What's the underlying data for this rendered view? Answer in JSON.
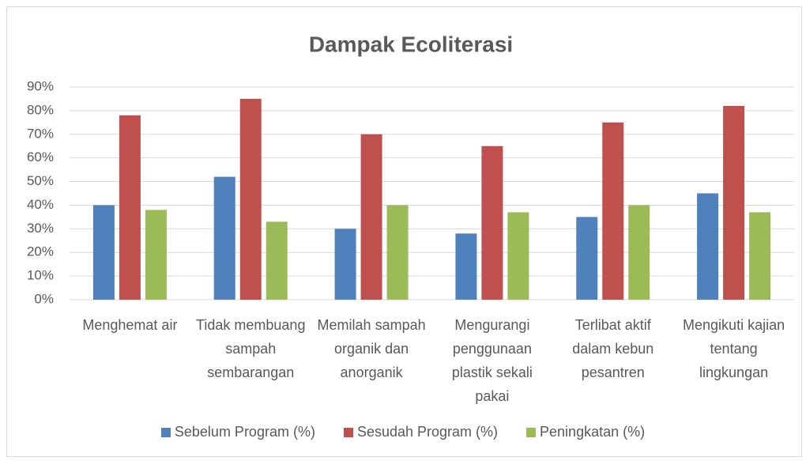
{
  "chart_data": {
    "type": "bar",
    "title": "Dampak Ecoliterasi",
    "categories": [
      "Menghemat air",
      "Tidak membuang sampah sembarangan",
      "Memilah sampah organik dan anorganik",
      "Mengurangi penggunaan plastik sekali pakai",
      "Terlibat aktif dalam kebun pesantren",
      "Mengikuti kajian tentang lingkungan"
    ],
    "series": [
      {
        "name": "Sebelum Program (%)",
        "color": "#4f81bd",
        "values": [
          40,
          52,
          30,
          28,
          35,
          45
        ]
      },
      {
        "name": "Sesudah Program (%)",
        "color": "#c0504d",
        "values": [
          78,
          85,
          70,
          65,
          75,
          82
        ]
      },
      {
        "name": "Peningkatan (%)",
        "color": "#9bbb59",
        "values": [
          38,
          33,
          40,
          37,
          40,
          37
        ]
      }
    ],
    "ylim": [
      0,
      90
    ],
    "yticks": [
      {
        "value": 0,
        "label": "0%"
      },
      {
        "value": 10,
        "label": "10%"
      },
      {
        "value": 20,
        "label": "20%"
      },
      {
        "value": 30,
        "label": "30%"
      },
      {
        "value": 40,
        "label": "40%"
      },
      {
        "value": 50,
        "label": "50%"
      },
      {
        "value": 60,
        "label": "60%"
      },
      {
        "value": 70,
        "label": "70%"
      },
      {
        "value": 80,
        "label": "80%"
      },
      {
        "value": 90,
        "label": "90%"
      }
    ],
    "grid": true,
    "legend": "bottom"
  }
}
